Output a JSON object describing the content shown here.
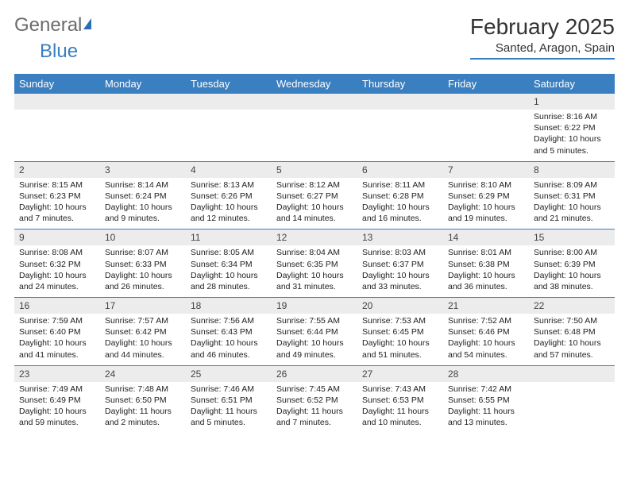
{
  "brand": {
    "part1": "General",
    "part2": "Blue"
  },
  "title": "February 2025",
  "location": "Santed, Aragon, Spain",
  "weekdays": [
    "Sunday",
    "Monday",
    "Tuesday",
    "Wednesday",
    "Thursday",
    "Friday",
    "Saturday"
  ],
  "colors": {
    "header_bar": "#3a7fc0",
    "band": "#ececec",
    "rule": "#3a7fc0",
    "text": "#333333",
    "brand_blue": "#3a7fc0",
    "brand_gray": "#6b6b6b"
  },
  "layout": {
    "cols": 7,
    "rows": 5,
    "cell_font_pt": 8,
    "header_font_pt": 10
  },
  "weeks": [
    {
      "nums": [
        "",
        "",
        "",
        "",
        "",
        "",
        "1"
      ],
      "cells": [
        null,
        null,
        null,
        null,
        null,
        null,
        {
          "sunrise": "Sunrise: 8:16 AM",
          "sunset": "Sunset: 6:22 PM",
          "dl1": "Daylight: 10 hours",
          "dl2": "and 5 minutes."
        }
      ]
    },
    {
      "nums": [
        "2",
        "3",
        "4",
        "5",
        "6",
        "7",
        "8"
      ],
      "cells": [
        {
          "sunrise": "Sunrise: 8:15 AM",
          "sunset": "Sunset: 6:23 PM",
          "dl1": "Daylight: 10 hours",
          "dl2": "and 7 minutes."
        },
        {
          "sunrise": "Sunrise: 8:14 AM",
          "sunset": "Sunset: 6:24 PM",
          "dl1": "Daylight: 10 hours",
          "dl2": "and 9 minutes."
        },
        {
          "sunrise": "Sunrise: 8:13 AM",
          "sunset": "Sunset: 6:26 PM",
          "dl1": "Daylight: 10 hours",
          "dl2": "and 12 minutes."
        },
        {
          "sunrise": "Sunrise: 8:12 AM",
          "sunset": "Sunset: 6:27 PM",
          "dl1": "Daylight: 10 hours",
          "dl2": "and 14 minutes."
        },
        {
          "sunrise": "Sunrise: 8:11 AM",
          "sunset": "Sunset: 6:28 PM",
          "dl1": "Daylight: 10 hours",
          "dl2": "and 16 minutes."
        },
        {
          "sunrise": "Sunrise: 8:10 AM",
          "sunset": "Sunset: 6:29 PM",
          "dl1": "Daylight: 10 hours",
          "dl2": "and 19 minutes."
        },
        {
          "sunrise": "Sunrise: 8:09 AM",
          "sunset": "Sunset: 6:31 PM",
          "dl1": "Daylight: 10 hours",
          "dl2": "and 21 minutes."
        }
      ]
    },
    {
      "nums": [
        "9",
        "10",
        "11",
        "12",
        "13",
        "14",
        "15"
      ],
      "cells": [
        {
          "sunrise": "Sunrise: 8:08 AM",
          "sunset": "Sunset: 6:32 PM",
          "dl1": "Daylight: 10 hours",
          "dl2": "and 24 minutes."
        },
        {
          "sunrise": "Sunrise: 8:07 AM",
          "sunset": "Sunset: 6:33 PM",
          "dl1": "Daylight: 10 hours",
          "dl2": "and 26 minutes."
        },
        {
          "sunrise": "Sunrise: 8:05 AM",
          "sunset": "Sunset: 6:34 PM",
          "dl1": "Daylight: 10 hours",
          "dl2": "and 28 minutes."
        },
        {
          "sunrise": "Sunrise: 8:04 AM",
          "sunset": "Sunset: 6:35 PM",
          "dl1": "Daylight: 10 hours",
          "dl2": "and 31 minutes."
        },
        {
          "sunrise": "Sunrise: 8:03 AM",
          "sunset": "Sunset: 6:37 PM",
          "dl1": "Daylight: 10 hours",
          "dl2": "and 33 minutes."
        },
        {
          "sunrise": "Sunrise: 8:01 AM",
          "sunset": "Sunset: 6:38 PM",
          "dl1": "Daylight: 10 hours",
          "dl2": "and 36 minutes."
        },
        {
          "sunrise": "Sunrise: 8:00 AM",
          "sunset": "Sunset: 6:39 PM",
          "dl1": "Daylight: 10 hours",
          "dl2": "and 38 minutes."
        }
      ]
    },
    {
      "nums": [
        "16",
        "17",
        "18",
        "19",
        "20",
        "21",
        "22"
      ],
      "cells": [
        {
          "sunrise": "Sunrise: 7:59 AM",
          "sunset": "Sunset: 6:40 PM",
          "dl1": "Daylight: 10 hours",
          "dl2": "and 41 minutes."
        },
        {
          "sunrise": "Sunrise: 7:57 AM",
          "sunset": "Sunset: 6:42 PM",
          "dl1": "Daylight: 10 hours",
          "dl2": "and 44 minutes."
        },
        {
          "sunrise": "Sunrise: 7:56 AM",
          "sunset": "Sunset: 6:43 PM",
          "dl1": "Daylight: 10 hours",
          "dl2": "and 46 minutes."
        },
        {
          "sunrise": "Sunrise: 7:55 AM",
          "sunset": "Sunset: 6:44 PM",
          "dl1": "Daylight: 10 hours",
          "dl2": "and 49 minutes."
        },
        {
          "sunrise": "Sunrise: 7:53 AM",
          "sunset": "Sunset: 6:45 PM",
          "dl1": "Daylight: 10 hours",
          "dl2": "and 51 minutes."
        },
        {
          "sunrise": "Sunrise: 7:52 AM",
          "sunset": "Sunset: 6:46 PM",
          "dl1": "Daylight: 10 hours",
          "dl2": "and 54 minutes."
        },
        {
          "sunrise": "Sunrise: 7:50 AM",
          "sunset": "Sunset: 6:48 PM",
          "dl1": "Daylight: 10 hours",
          "dl2": "and 57 minutes."
        }
      ]
    },
    {
      "nums": [
        "23",
        "24",
        "25",
        "26",
        "27",
        "28",
        ""
      ],
      "cells": [
        {
          "sunrise": "Sunrise: 7:49 AM",
          "sunset": "Sunset: 6:49 PM",
          "dl1": "Daylight: 10 hours",
          "dl2": "and 59 minutes."
        },
        {
          "sunrise": "Sunrise: 7:48 AM",
          "sunset": "Sunset: 6:50 PM",
          "dl1": "Daylight: 11 hours",
          "dl2": "and 2 minutes."
        },
        {
          "sunrise": "Sunrise: 7:46 AM",
          "sunset": "Sunset: 6:51 PM",
          "dl1": "Daylight: 11 hours",
          "dl2": "and 5 minutes."
        },
        {
          "sunrise": "Sunrise: 7:45 AM",
          "sunset": "Sunset: 6:52 PM",
          "dl1": "Daylight: 11 hours",
          "dl2": "and 7 minutes."
        },
        {
          "sunrise": "Sunrise: 7:43 AM",
          "sunset": "Sunset: 6:53 PM",
          "dl1": "Daylight: 11 hours",
          "dl2": "and 10 minutes."
        },
        {
          "sunrise": "Sunrise: 7:42 AM",
          "sunset": "Sunset: 6:55 PM",
          "dl1": "Daylight: 11 hours",
          "dl2": "and 13 minutes."
        },
        null
      ]
    }
  ]
}
